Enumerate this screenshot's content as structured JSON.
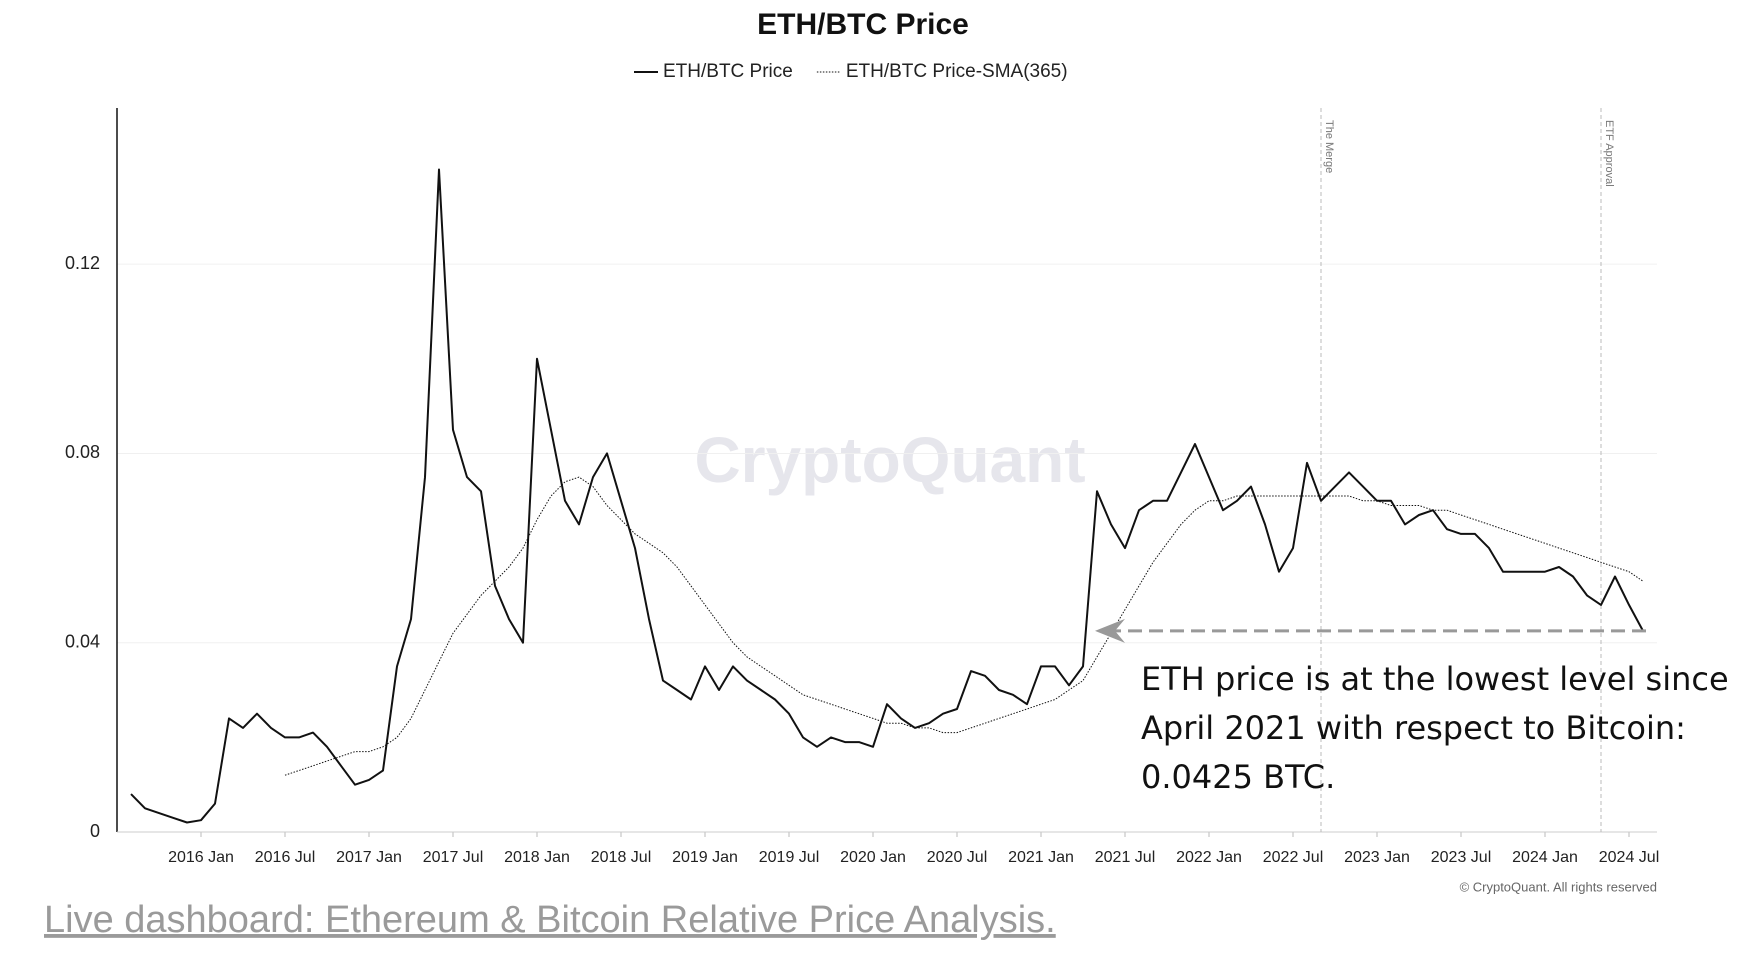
{
  "chart_data": {
    "type": "line",
    "title": "ETH/BTC Price",
    "watermark": "CryptoQuant",
    "copyright": "© CryptoQuant. All rights reserved",
    "footer_link": "Live dashboard: Ethereum & Bitcoin Relative Price Analysis.",
    "annotation": [
      "ETH price is at the lowest level since",
      "April 2021 with respect to Bitcoin:",
      "0.0425 BTC."
    ],
    "events": [
      {
        "label": "The Merge",
        "x": "2022-09"
      },
      {
        "label": "ETF Approval",
        "x": "2024-05"
      }
    ],
    "grid": true,
    "xlim": [
      "2015-07",
      "2024-09"
    ],
    "ylim": [
      0,
      0.153
    ],
    "yticks": [
      0,
      0.04,
      0.08,
      0.12
    ],
    "xticks": [
      {
        "value": "2016-01",
        "label": "2016 Jan"
      },
      {
        "value": "2016-07",
        "label": "2016 Jul"
      },
      {
        "value": "2017-01",
        "label": "2017 Jan"
      },
      {
        "value": "2017-07",
        "label": "2017 Jul"
      },
      {
        "value": "2018-01",
        "label": "2018 Jan"
      },
      {
        "value": "2018-07",
        "label": "2018 Jul"
      },
      {
        "value": "2019-01",
        "label": "2019 Jan"
      },
      {
        "value": "2019-07",
        "label": "2019 Jul"
      },
      {
        "value": "2020-01",
        "label": "2020 Jan"
      },
      {
        "value": "2020-07",
        "label": "2020 Jul"
      },
      {
        "value": "2021-01",
        "label": "2021 Jan"
      },
      {
        "value": "2021-07",
        "label": "2021 Jul"
      },
      {
        "value": "2022-01",
        "label": "2022 Jan"
      },
      {
        "value": "2022-07",
        "label": "2022 Jul"
      },
      {
        "value": "2023-01",
        "label": "2023 Jan"
      },
      {
        "value": "2023-07",
        "label": "2023 Jul"
      },
      {
        "value": "2024-01",
        "label": "2024 Jan"
      },
      {
        "value": "2024-07",
        "label": "2024 Jul"
      }
    ],
    "x": [
      "2015-08",
      "2015-09",
      "2015-10",
      "2015-11",
      "2015-12",
      "2016-01",
      "2016-02",
      "2016-03",
      "2016-04",
      "2016-05",
      "2016-06",
      "2016-07",
      "2016-08",
      "2016-09",
      "2016-10",
      "2016-11",
      "2016-12",
      "2017-01",
      "2017-02",
      "2017-03",
      "2017-04",
      "2017-05",
      "2017-06",
      "2017-07",
      "2017-08",
      "2017-09",
      "2017-10",
      "2017-11",
      "2017-12",
      "2018-01",
      "2018-02",
      "2018-03",
      "2018-04",
      "2018-05",
      "2018-06",
      "2018-07",
      "2018-08",
      "2018-09",
      "2018-10",
      "2018-11",
      "2018-12",
      "2019-01",
      "2019-02",
      "2019-03",
      "2019-04",
      "2019-05",
      "2019-06",
      "2019-07",
      "2019-08",
      "2019-09",
      "2019-10",
      "2019-11",
      "2019-12",
      "2020-01",
      "2020-02",
      "2020-03",
      "2020-04",
      "2020-05",
      "2020-06",
      "2020-07",
      "2020-08",
      "2020-09",
      "2020-10",
      "2020-11",
      "2020-12",
      "2021-01",
      "2021-02",
      "2021-03",
      "2021-04",
      "2021-05",
      "2021-06",
      "2021-07",
      "2021-08",
      "2021-09",
      "2021-10",
      "2021-11",
      "2021-12",
      "2022-01",
      "2022-02",
      "2022-03",
      "2022-04",
      "2022-05",
      "2022-06",
      "2022-07",
      "2022-08",
      "2022-09",
      "2022-10",
      "2022-11",
      "2022-12",
      "2023-01",
      "2023-02",
      "2023-03",
      "2023-04",
      "2023-05",
      "2023-06",
      "2023-07",
      "2023-08",
      "2023-09",
      "2023-10",
      "2023-11",
      "2023-12",
      "2024-01",
      "2024-02",
      "2024-03",
      "2024-04",
      "2024-05",
      "2024-06",
      "2024-07",
      "2024-08"
    ],
    "series": [
      {
        "name": "ETH/BTC Price",
        "color": "#111111",
        "style": "solid",
        "values": [
          0.008,
          0.005,
          0.004,
          0.003,
          0.002,
          0.0025,
          0.006,
          0.024,
          0.022,
          0.025,
          0.022,
          0.02,
          0.02,
          0.021,
          0.018,
          0.014,
          0.01,
          0.011,
          0.013,
          0.035,
          0.045,
          0.075,
          0.14,
          0.085,
          0.075,
          0.072,
          0.052,
          0.045,
          0.04,
          0.1,
          0.085,
          0.07,
          0.065,
          0.075,
          0.08,
          0.07,
          0.06,
          0.045,
          0.032,
          0.03,
          0.028,
          0.035,
          0.03,
          0.035,
          0.032,
          0.03,
          0.028,
          0.025,
          0.02,
          0.018,
          0.02,
          0.019,
          0.019,
          0.018,
          0.027,
          0.024,
          0.022,
          0.023,
          0.025,
          0.026,
          0.034,
          0.033,
          0.03,
          0.029,
          0.027,
          0.035,
          0.035,
          0.031,
          0.035,
          0.072,
          0.065,
          0.06,
          0.068,
          0.07,
          0.07,
          0.076,
          0.082,
          0.075,
          0.068,
          0.07,
          0.073,
          0.065,
          0.055,
          0.06,
          0.078,
          0.07,
          0.073,
          0.076,
          0.073,
          0.07,
          0.07,
          0.065,
          0.067,
          0.068,
          0.064,
          0.063,
          0.063,
          0.06,
          0.055,
          0.055,
          0.055,
          0.055,
          0.056,
          0.054,
          0.05,
          0.048,
          0.054,
          0.048,
          0.0425
        ]
      },
      {
        "name": "ETH/BTC Price-SMA(365)",
        "color": "#111111",
        "style": "dotted",
        "values": [
          null,
          null,
          null,
          null,
          null,
          null,
          null,
          null,
          null,
          null,
          null,
          0.012,
          0.013,
          0.014,
          0.015,
          0.016,
          0.017,
          0.017,
          0.018,
          0.02,
          0.024,
          0.03,
          0.036,
          0.042,
          0.046,
          0.05,
          0.053,
          0.056,
          0.06,
          0.066,
          0.071,
          0.074,
          0.075,
          0.073,
          0.069,
          0.066,
          0.063,
          0.061,
          0.059,
          0.056,
          0.052,
          0.048,
          0.044,
          0.04,
          0.037,
          0.035,
          0.033,
          0.031,
          0.029,
          0.028,
          0.027,
          0.026,
          0.025,
          0.024,
          0.023,
          0.023,
          0.022,
          0.022,
          0.021,
          0.021,
          0.022,
          0.023,
          0.024,
          0.025,
          0.026,
          0.027,
          0.028,
          0.03,
          0.032,
          0.037,
          0.042,
          0.047,
          0.052,
          0.057,
          0.061,
          0.065,
          0.068,
          0.07,
          0.07,
          0.071,
          0.071,
          0.071,
          0.071,
          0.071,
          0.071,
          0.071,
          0.071,
          0.071,
          0.07,
          0.07,
          0.069,
          0.069,
          0.069,
          0.068,
          0.068,
          0.067,
          0.066,
          0.065,
          0.064,
          0.063,
          0.062,
          0.061,
          0.06,
          0.059,
          0.058,
          0.057,
          0.056,
          0.055,
          0.053
        ]
      }
    ]
  }
}
